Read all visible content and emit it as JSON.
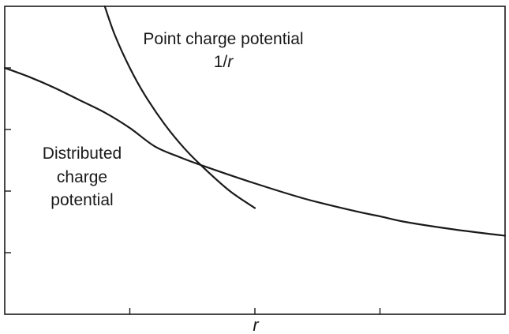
{
  "chart_data": {
    "type": "line",
    "title": "",
    "xlabel": "r",
    "ylabel": "",
    "grid": false,
    "legend": "none",
    "xlim": [
      0,
      1
    ],
    "ylim": [
      0,
      1
    ],
    "x_ticks": [
      0.25,
      0.5,
      0.75
    ],
    "y_ticks": [
      0.2,
      0.4,
      0.6,
      0.8
    ],
    "series": [
      {
        "name": "Point charge potential",
        "formula": "1/r",
        "x": [
          0.2,
          0.22,
          0.25,
          0.28,
          0.32,
          0.36,
          0.4,
          0.45,
          0.5
        ],
        "y": [
          1.0,
          0.907,
          0.8,
          0.712,
          0.616,
          0.537,
          0.472,
          0.4,
          0.345
        ]
      },
      {
        "name": "Distributed charge potential",
        "x": [
          0.0,
          0.05,
          0.1,
          0.15,
          0.2,
          0.25,
          0.3,
          0.35,
          0.4,
          0.5,
          0.6,
          0.7,
          0.75,
          0.8,
          0.9,
          1.0
        ],
        "y": [
          0.8,
          0.77,
          0.735,
          0.695,
          0.655,
          0.605,
          0.545,
          0.51,
          0.48,
          0.425,
          0.375,
          0.335,
          0.318,
          0.3,
          0.275,
          0.255
        ]
      }
    ],
    "annotations": {
      "point_label_line1": "Point charge potential",
      "point_label_line2_prefix": "1/",
      "point_label_line2_var": "r",
      "distributed_label_line1": "Distributed",
      "distributed_label_line2": "charge",
      "distributed_label_line3": "potential"
    }
  }
}
